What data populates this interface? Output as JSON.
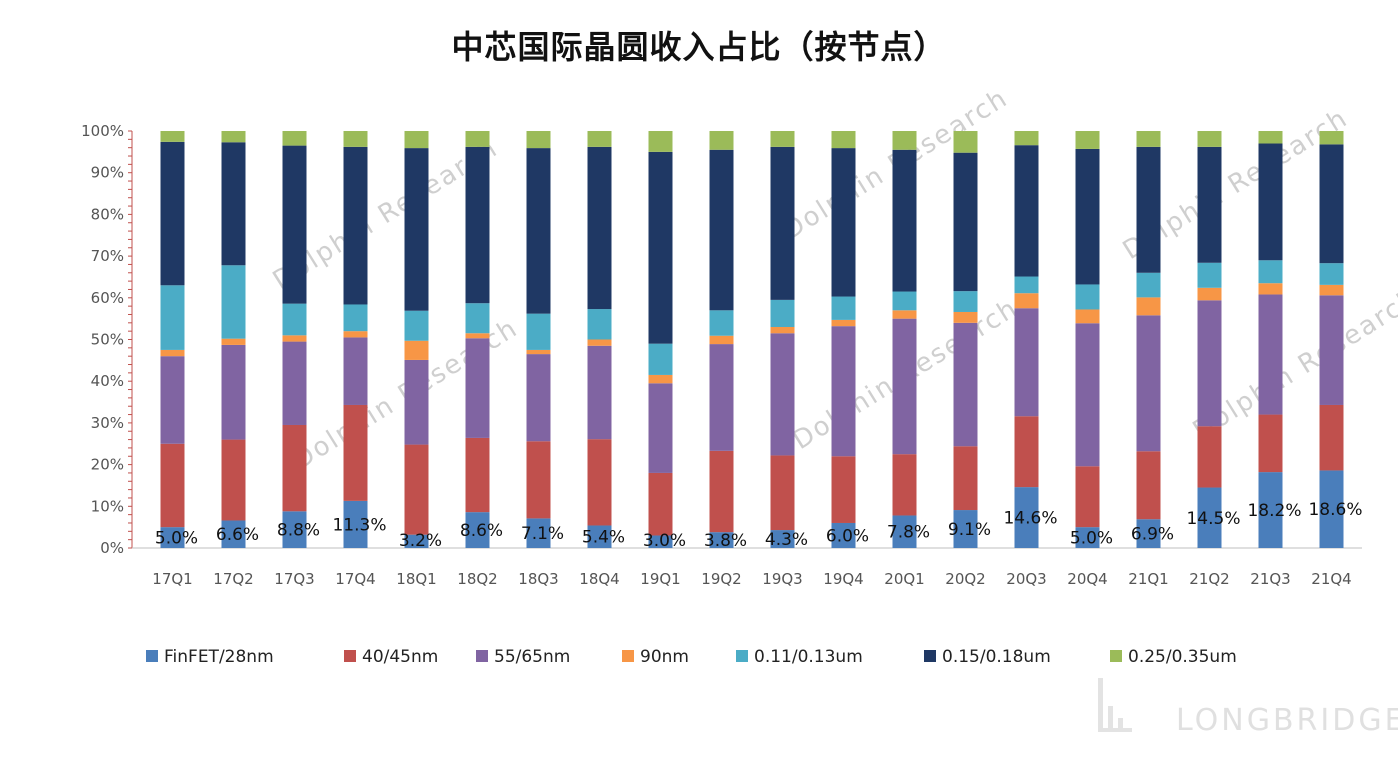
{
  "chart_data": {
    "type": "bar",
    "stacked": true,
    "percent": true,
    "title": "中芯国际晶圆收入占比（按节点）",
    "categories": [
      "17Q1",
      "17Q2",
      "17Q3",
      "17Q4",
      "18Q1",
      "18Q2",
      "18Q3",
      "18Q4",
      "19Q1",
      "19Q2",
      "19Q3",
      "19Q4",
      "20Q1",
      "20Q2",
      "20Q3",
      "20Q4",
      "21Q1",
      "21Q2",
      "21Q3",
      "21Q4"
    ],
    "yticks": [
      "0%",
      "10%",
      "20%",
      "30%",
      "40%",
      "50%",
      "60%",
      "70%",
      "80%",
      "90%",
      "100%"
    ],
    "ylim": [
      0,
      100
    ],
    "legend_position": "bottom",
    "series": [
      {
        "name": "FinFET/28nm",
        "color": "#4a7ebb",
        "values": [
          5.0,
          6.6,
          8.8,
          11.3,
          3.2,
          8.6,
          7.1,
          5.4,
          3.0,
          3.8,
          4.3,
          6.0,
          7.8,
          9.1,
          14.6,
          5.0,
          6.9,
          14.5,
          18.2,
          18.6
        ]
      },
      {
        "name": "40/45nm",
        "color": "#c0504d",
        "values": [
          20.0,
          19.4,
          20.7,
          23.0,
          21.6,
          17.8,
          18.5,
          20.7,
          15.0,
          19.5,
          17.9,
          16.0,
          14.7,
          15.3,
          17.0,
          14.6,
          16.3,
          14.7,
          13.8,
          15.7
        ]
      },
      {
        "name": "55/65nm",
        "color": "#8064a2",
        "values": [
          21.0,
          22.7,
          20.0,
          16.2,
          20.3,
          23.9,
          20.9,
          22.4,
          21.5,
          25.6,
          29.3,
          31.2,
          32.5,
          29.6,
          25.9,
          34.3,
          32.6,
          30.2,
          28.8,
          26.3
        ]
      },
      {
        "name": "90nm",
        "color": "#f79646",
        "values": [
          1.5,
          1.5,
          1.5,
          1.5,
          4.6,
          1.2,
          1.0,
          1.5,
          2.0,
          2.0,
          1.5,
          1.5,
          2.0,
          2.6,
          3.6,
          3.3,
          4.3,
          3.0,
          2.7,
          2.5
        ]
      },
      {
        "name": "0.11/0.13um",
        "color": "#4bacc6",
        "values": [
          15.5,
          17.6,
          7.6,
          6.4,
          7.2,
          7.2,
          8.7,
          7.3,
          7.5,
          6.1,
          6.5,
          5.6,
          4.5,
          5.0,
          4.0,
          6.0,
          5.9,
          6.0,
          5.5,
          5.2
        ]
      },
      {
        "name": "0.15/0.18um",
        "color": "#1f3864",
        "values": [
          34.4,
          29.5,
          37.9,
          37.8,
          39.0,
          37.5,
          39.7,
          38.9,
          46.0,
          38.5,
          36.7,
          35.6,
          34.0,
          33.2,
          31.5,
          32.5,
          30.2,
          27.8,
          28.0,
          28.5
        ]
      },
      {
        "name": "0.25/0.35um",
        "color": "#9bbb59",
        "values": [
          2.6,
          2.7,
          3.5,
          3.8,
          4.1,
          3.8,
          4.1,
          3.8,
          5.0,
          4.5,
          3.8,
          4.1,
          4.5,
          5.2,
          3.4,
          4.3,
          3.8,
          3.8,
          3.0,
          3.2
        ]
      }
    ],
    "data_labels": [
      "5.0%",
      "6.6%",
      "8.8%",
      "11.3%",
      "3.2%",
      "8.6%",
      "7.1%",
      "5.4%",
      "3.0%",
      "3.8%",
      "4.3%",
      "6.0%",
      "7.8%",
      "9.1%",
      "14.6%",
      "5.0%",
      "6.9%",
      "14.5%",
      "18.2%",
      "18.6%"
    ]
  },
  "watermarks": [
    "Dolphin Research",
    "Dolphin Research",
    "Dolphin Research",
    "Dolphin Research"
  ],
  "branding": {
    "text": "LONGBRIDGE"
  }
}
